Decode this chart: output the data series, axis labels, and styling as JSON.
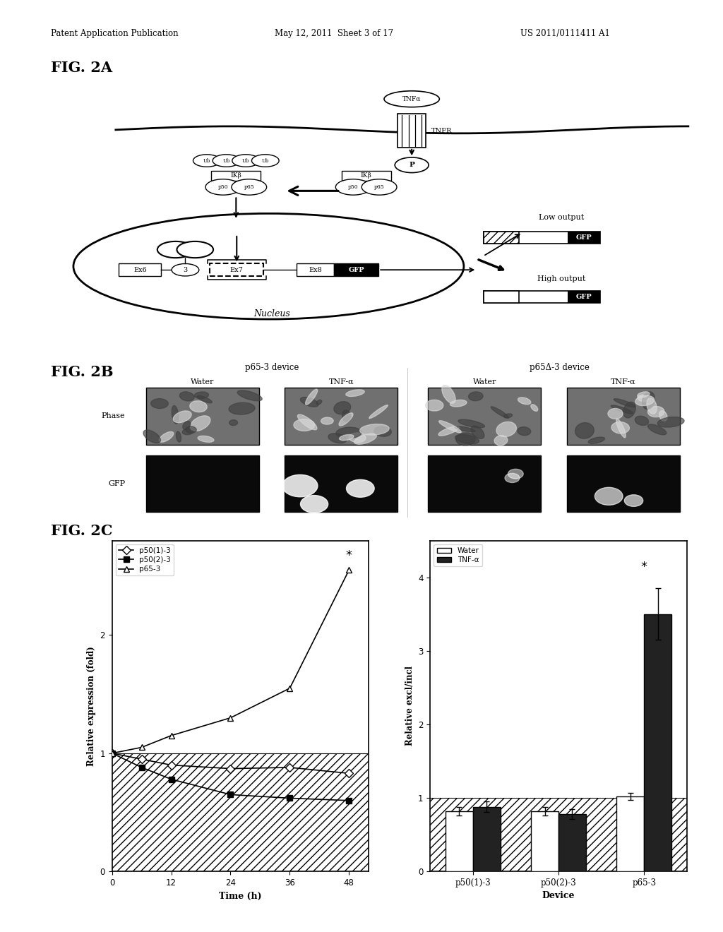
{
  "header_left": "Patent Application Publication",
  "header_center": "May 12, 2011  Sheet 3 of 17",
  "header_right": "US 2011/0111411 A1",
  "fig2a_label": "FIG. 2A",
  "fig2b_label": "FIG. 2B",
  "fig2c_label": "FIG. 2C",
  "line_chart": {
    "xlabel": "Time (h)",
    "ylabel": "Relative expression (fold)",
    "xlim": [
      0,
      52
    ],
    "ylim": [
      0,
      2.8
    ],
    "xticks": [
      0,
      12,
      24,
      36,
      48
    ],
    "yticks": [
      0,
      1,
      2
    ],
    "series": [
      {
        "label": "p50(1)-3",
        "marker": "D",
        "fillstyle": "none",
        "x": [
          0,
          6,
          12,
          24,
          36,
          48
        ],
        "y": [
          1.0,
          0.95,
          0.9,
          0.87,
          0.88,
          0.83
        ]
      },
      {
        "label": "p50(2)-3",
        "marker": "s",
        "fillstyle": "full",
        "x": [
          0,
          6,
          12,
          24,
          36,
          48
        ],
        "y": [
          1.0,
          0.88,
          0.78,
          0.65,
          0.62,
          0.6
        ]
      },
      {
        "label": "p65-3",
        "marker": "^",
        "fillstyle": "none",
        "x": [
          0,
          6,
          12,
          24,
          36,
          48
        ],
        "y": [
          1.0,
          1.05,
          1.15,
          1.3,
          1.55,
          2.55
        ]
      }
    ],
    "asterisk_x": 48,
    "asterisk_y": 2.62
  },
  "bar_chart": {
    "xlabel": "Device",
    "ylabel": "Relative excl/incl",
    "ylim": [
      0,
      4.5
    ],
    "yticks": [
      0,
      1,
      2,
      3,
      4
    ],
    "categories": [
      "p50(1)-3",
      "p50(2)-3",
      "p65-3"
    ],
    "water_values": [
      0.82,
      0.82,
      1.02
    ],
    "tnf_values": [
      0.88,
      0.78,
      3.5
    ],
    "water_errors": [
      0.06,
      0.06,
      0.05
    ],
    "tnf_errors": [
      0.07,
      0.07,
      0.35
    ],
    "asterisk_x": 2,
    "asterisk_y": 4.05
  },
  "background_color": "#ffffff",
  "text_color": "#000000"
}
